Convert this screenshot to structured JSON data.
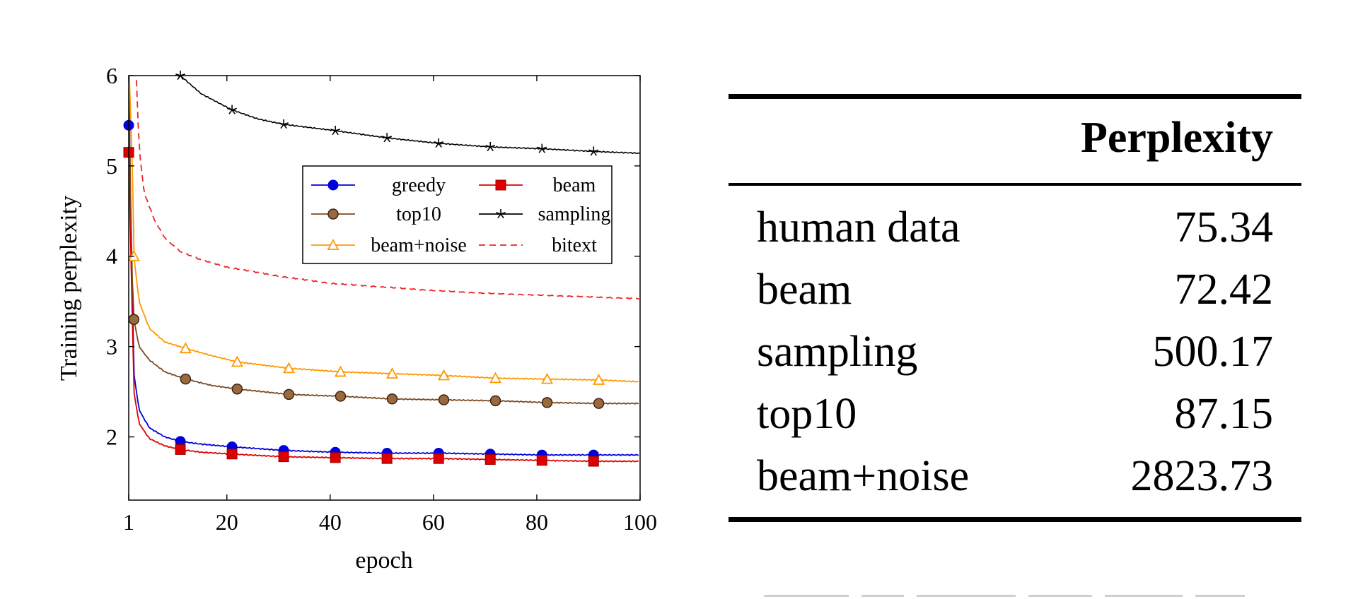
{
  "chart_data": {
    "type": "line",
    "xlabel": "epoch",
    "ylabel": "Training perplexity",
    "xlim": [
      1,
      100
    ],
    "ylim": [
      1.3,
      6
    ],
    "xticks": [
      1,
      20,
      40,
      60,
      80,
      100
    ],
    "yticks": [
      2,
      3,
      4,
      5,
      6
    ],
    "grid": false,
    "legend_position": "center-right",
    "series": [
      {
        "name": "greedy",
        "color": "#0000dd",
        "marker": "circle",
        "x": [
          1,
          2,
          3,
          5,
          8,
          11,
          15,
          21,
          31,
          41,
          51,
          61,
          71,
          81,
          91,
          100
        ],
        "y": [
          5.45,
          2.7,
          2.3,
          2.1,
          2.0,
          1.95,
          1.92,
          1.89,
          1.85,
          1.83,
          1.82,
          1.82,
          1.81,
          1.8,
          1.8,
          1.8
        ],
        "markers_x": [
          1,
          11,
          21,
          31,
          41,
          51,
          61,
          71,
          81,
          91
        ]
      },
      {
        "name": "beam",
        "color": "#dd0000",
        "marker": "square",
        "x": [
          1,
          2,
          3,
          5,
          8,
          11,
          15,
          21,
          31,
          41,
          51,
          61,
          71,
          81,
          91,
          100
        ],
        "y": [
          5.15,
          2.5,
          2.15,
          1.98,
          1.9,
          1.86,
          1.83,
          1.81,
          1.78,
          1.77,
          1.76,
          1.76,
          1.75,
          1.74,
          1.73,
          1.73
        ],
        "markers_x": [
          1,
          11,
          21,
          31,
          41,
          51,
          61,
          71,
          81,
          91
        ]
      },
      {
        "name": "top10",
        "color": "#7b4a22",
        "marker": "circle-filled-brown",
        "x": [
          1,
          1.5,
          2,
          3,
          5,
          8,
          12,
          17,
          22,
          32,
          42,
          52,
          62,
          72,
          82,
          92,
          100
        ],
        "y": [
          6.2,
          4.03,
          3.3,
          3.0,
          2.85,
          2.72,
          2.64,
          2.57,
          2.53,
          2.47,
          2.45,
          2.42,
          2.41,
          2.4,
          2.38,
          2.37,
          2.37
        ],
        "markers_x": [
          2,
          12,
          22,
          32,
          42,
          52,
          62,
          72,
          82,
          92
        ]
      },
      {
        "name": "sampling",
        "color": "#000000",
        "marker": "star",
        "x": [
          10,
          11,
          15,
          21,
          26,
          31,
          41,
          51,
          61,
          71,
          81,
          91,
          100
        ],
        "y": [
          6.0,
          6.0,
          5.8,
          5.62,
          5.52,
          5.46,
          5.39,
          5.31,
          5.25,
          5.21,
          5.19,
          5.16,
          5.14
        ],
        "markers_x": [
          11,
          21,
          31,
          41,
          51,
          61,
          71,
          81,
          91
        ]
      },
      {
        "name": "beam+noise",
        "color": "#ff9900",
        "marker": "triangle",
        "x": [
          1,
          1.7,
          2,
          3,
          5,
          8,
          12,
          17,
          22,
          32,
          42,
          52,
          62,
          72,
          82,
          92,
          100
        ],
        "y": [
          6.2,
          4.98,
          4.0,
          3.5,
          3.2,
          3.05,
          2.98,
          2.9,
          2.83,
          2.76,
          2.72,
          2.7,
          2.68,
          2.65,
          2.64,
          2.63,
          2.61
        ],
        "markers_x": [
          2,
          12,
          22,
          32,
          42,
          52,
          62,
          72,
          82,
          92
        ]
      },
      {
        "name": "bitext",
        "color": "#ee2222",
        "marker": "none",
        "dash": true,
        "x": [
          2.5,
          3,
          4,
          6,
          8,
          11,
          15,
          20,
          30,
          40,
          50,
          60,
          70,
          80,
          90,
          100
        ],
        "y": [
          5.95,
          5.2,
          4.7,
          4.4,
          4.2,
          4.05,
          3.96,
          3.88,
          3.78,
          3.7,
          3.66,
          3.62,
          3.59,
          3.57,
          3.55,
          3.53
        ],
        "markers_x": []
      }
    ]
  },
  "table": {
    "header": "Perplexity",
    "rows": [
      {
        "label": "human data",
        "value": "75.34"
      },
      {
        "label": "beam",
        "value": "72.42"
      },
      {
        "label": "sampling",
        "value": "500.17"
      },
      {
        "label": "top10",
        "value": "87.15"
      },
      {
        "label": "beam+noise",
        "value": "2823.73"
      }
    ]
  }
}
